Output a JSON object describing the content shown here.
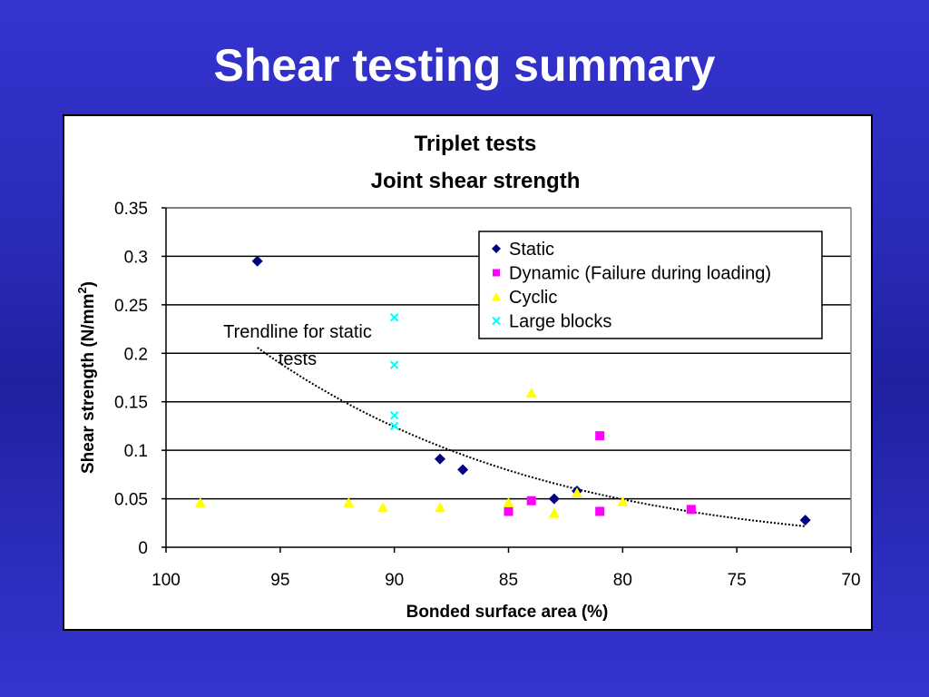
{
  "slide": {
    "title": "Shear testing summary"
  },
  "chart_data": {
    "type": "scatter",
    "title": "Triplet tests",
    "subtitle": "Joint shear strength",
    "xlabel": "Bonded surface area (%)",
    "ylabel_main": "Shear strength (N/mm",
    "ylabel_sup": "2",
    "ylabel_close": ")",
    "xlim": [
      100,
      70
    ],
    "x_reversed": true,
    "ylim": [
      0,
      0.35
    ],
    "xticks": [
      100,
      95,
      90,
      85,
      80,
      75,
      70
    ],
    "yticks": [
      0,
      0.05,
      0.1,
      0.15,
      0.2,
      0.25,
      0.3,
      0.35
    ],
    "ytick_labels": [
      "0",
      "0.05",
      "0.1",
      "0.15",
      "0.2",
      "0.25",
      "0.3",
      "0.35"
    ],
    "grid": "horizontal",
    "legend_position": "top-right",
    "annotation": {
      "line1": "Trendline for static",
      "line2": "tests"
    },
    "series": [
      {
        "name": "Static",
        "marker": "diamond",
        "color": "#000080",
        "points": [
          [
            96,
            0.295
          ],
          [
            88,
            0.091
          ],
          [
            87,
            0.08
          ],
          [
            83,
            0.05
          ],
          [
            82,
            0.058
          ],
          [
            72,
            0.028
          ]
        ]
      },
      {
        "name": "Dynamic (Failure during loading)",
        "marker": "square",
        "color": "#ff00ff",
        "points": [
          [
            85,
            0.037
          ],
          [
            84,
            0.048
          ],
          [
            81,
            0.115
          ],
          [
            81,
            0.037
          ],
          [
            77,
            0.039
          ]
        ]
      },
      {
        "name": "Cyclic",
        "marker": "triangle",
        "color": "#ffff00",
        "points": [
          [
            98.5,
            0.046
          ],
          [
            92,
            0.046
          ],
          [
            90.5,
            0.041
          ],
          [
            88,
            0.041
          ],
          [
            85,
            0.046
          ],
          [
            84,
            0.159
          ],
          [
            83,
            0.035
          ],
          [
            82,
            0.056
          ],
          [
            80,
            0.047
          ]
        ]
      },
      {
        "name": "Large blocks",
        "marker": "x",
        "color": "#00ffff",
        "points": [
          [
            90,
            0.237
          ],
          [
            90,
            0.188
          ],
          [
            90,
            0.136
          ],
          [
            90,
            0.125
          ]
        ]
      }
    ],
    "trendline": {
      "series": "Static",
      "style": "dotted",
      "color": "#000000",
      "from_x": 96,
      "to_x": 72
    }
  }
}
